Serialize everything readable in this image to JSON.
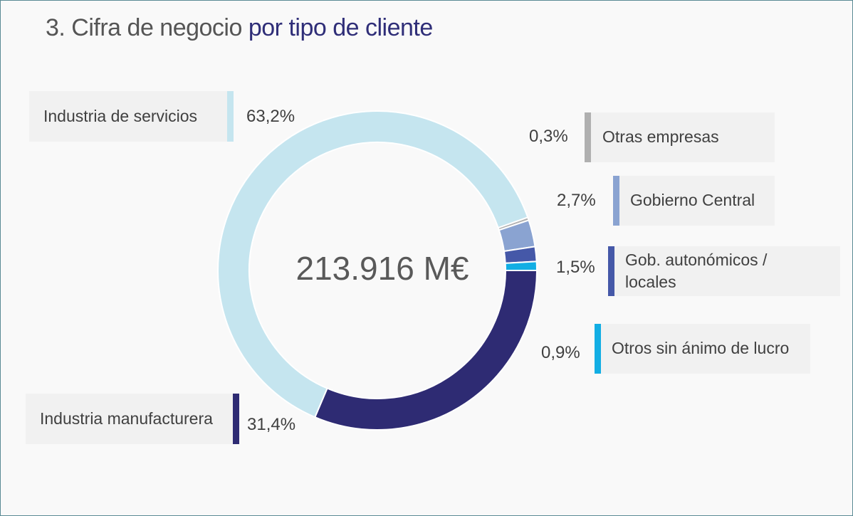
{
  "title": {
    "prefix": "3. Cifra de negocio",
    "accent": "por tipo de cliente"
  },
  "center_total": "213.916 M€",
  "chart_data": {
    "type": "pie",
    "title": "3. Cifra de negocio por tipo de cliente",
    "total": "213.916 M€",
    "slices": [
      {
        "label": "Industria de servicios",
        "value": 63.2,
        "value_label": "63,2%",
        "color": "#c5e5ef"
      },
      {
        "label": "Otras empresas",
        "value": 0.3,
        "value_label": "0,3%",
        "color": "#b0b0b0"
      },
      {
        "label": "Gobierno Central",
        "value": 2.7,
        "value_label": "2,7%",
        "color": "#8aa3d1"
      },
      {
        "label": "Gob. autonómicos / locales",
        "value": 1.5,
        "value_label": "1,5%",
        "color": "#4558a8"
      },
      {
        "label": "Otros sin ánimo de lucro",
        "value": 0.9,
        "value_label": "0,9%",
        "color": "#12aee4"
      },
      {
        "label": "Industria manufacturera",
        "value": 31.4,
        "value_label": "31,4%",
        "color": "#2e2b73"
      }
    ]
  }
}
